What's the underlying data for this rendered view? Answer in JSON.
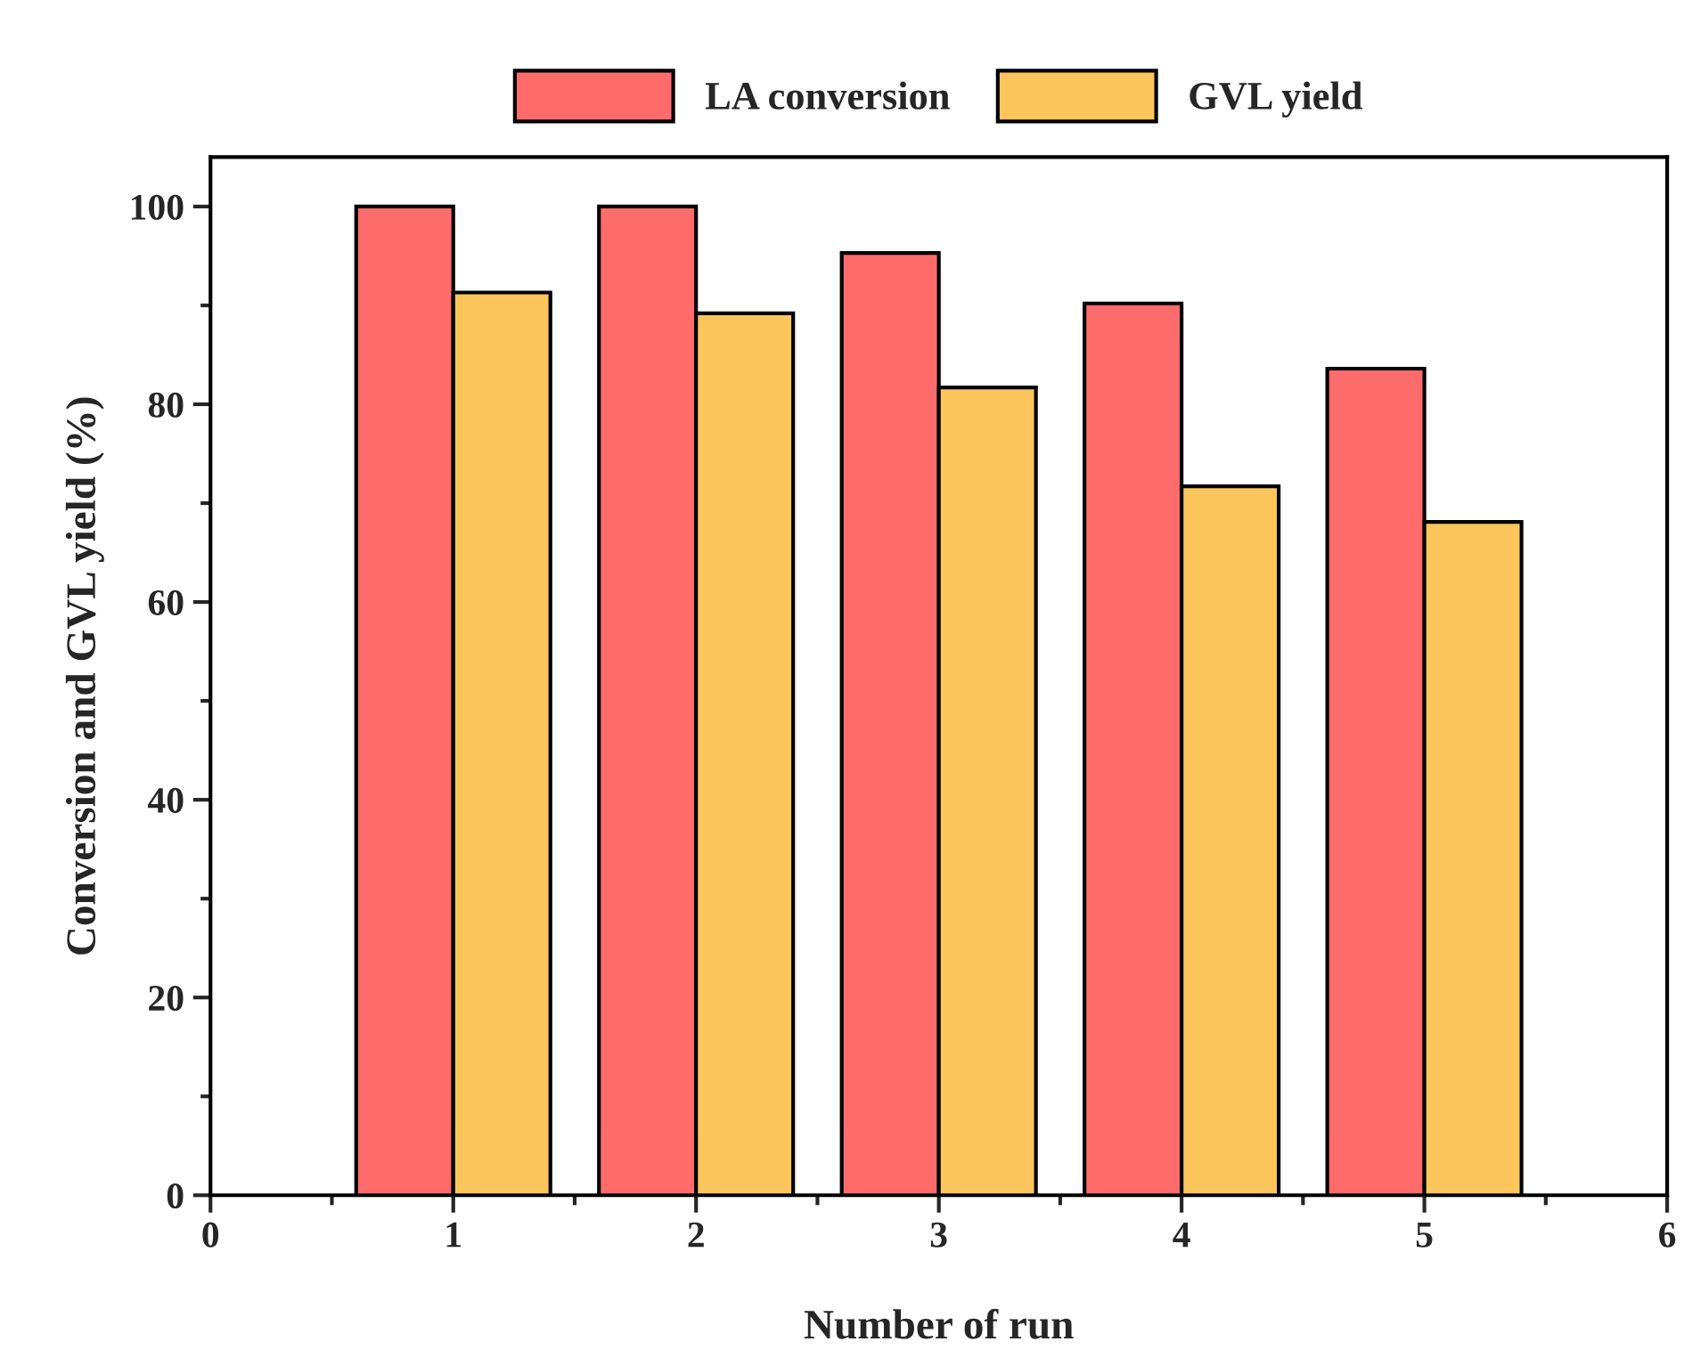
{
  "chart_data": {
    "type": "bar",
    "xlabel": "Number of run",
    "ylabel": "Conversion and GVL yield (%)",
    "x": [
      1,
      2,
      3,
      4,
      5
    ],
    "series": [
      {
        "name": "LA conversion",
        "color": "#fe6b6b",
        "values": [
          100,
          100,
          95.3,
          90.2,
          83.6
        ]
      },
      {
        "name": "GVL yield",
        "color": "#fdc65c",
        "values": [
          91.3,
          89.2,
          81.7,
          71.7,
          68.1
        ]
      }
    ],
    "xlim": [
      0,
      6
    ],
    "xticks": [
      0,
      1,
      2,
      3,
      4,
      5,
      6
    ],
    "ylim": [
      0,
      105
    ],
    "yticks": [
      0,
      20,
      40,
      60,
      80,
      100
    ],
    "legend": "top",
    "grid": false
  }
}
